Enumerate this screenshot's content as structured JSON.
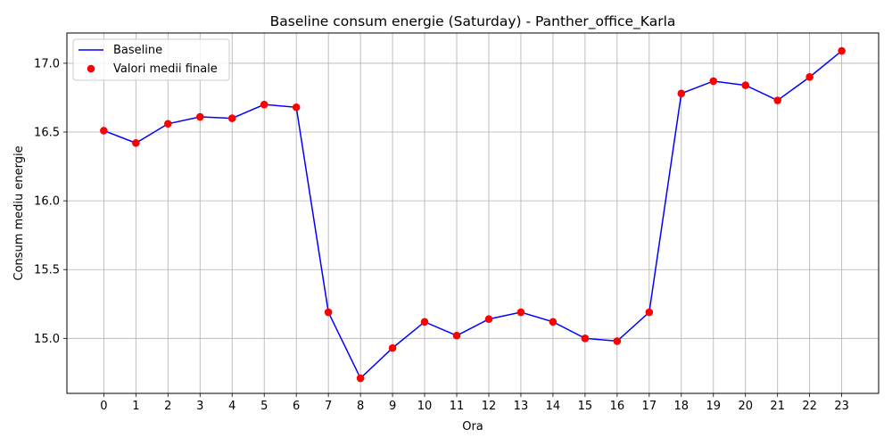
{
  "chart_data": {
    "type": "line",
    "title": "Baseline consum energie (Saturday) - Panther_office_Karla",
    "xlabel": "Ora",
    "ylabel": "Consum mediu energie",
    "x": [
      0,
      1,
      2,
      3,
      4,
      5,
      6,
      7,
      8,
      9,
      10,
      11,
      12,
      13,
      14,
      15,
      16,
      17,
      18,
      19,
      20,
      21,
      22,
      23
    ],
    "xticks": [
      "0",
      "1",
      "2",
      "3",
      "4",
      "5",
      "6",
      "7",
      "8",
      "9",
      "10",
      "11",
      "12",
      "13",
      "14",
      "15",
      "16",
      "17",
      "18",
      "19",
      "20",
      "21",
      "22",
      "23"
    ],
    "yticks": [
      "15.0",
      "15.5",
      "16.0",
      "16.5",
      "17.0"
    ],
    "ylim": [
      14.6,
      17.22
    ],
    "xlim": [
      -1.15,
      24.15
    ],
    "grid": true,
    "legend_position": "top-left",
    "series": [
      {
        "name": "Baseline",
        "kind": "line",
        "color": "#0000ff",
        "values": [
          16.51,
          16.42,
          16.56,
          16.61,
          16.6,
          16.7,
          16.68,
          15.19,
          14.71,
          14.93,
          15.12,
          15.02,
          15.14,
          15.19,
          15.12,
          15.0,
          14.98,
          15.19,
          16.78,
          16.87,
          16.84,
          16.73,
          16.9,
          17.09
        ]
      },
      {
        "name": "Valori medii finale",
        "kind": "scatter",
        "color": "#ff0000",
        "values": [
          16.51,
          16.42,
          16.56,
          16.61,
          16.6,
          16.7,
          16.68,
          15.19,
          14.71,
          14.93,
          15.12,
          15.02,
          15.14,
          15.19,
          15.12,
          15.0,
          14.98,
          15.19,
          16.78,
          16.87,
          16.84,
          16.73,
          16.9,
          17.09
        ]
      }
    ]
  }
}
